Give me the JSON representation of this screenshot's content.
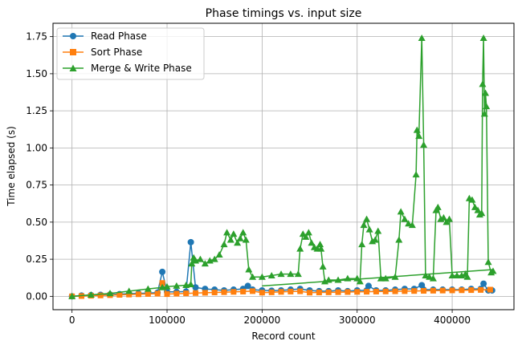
{
  "chart_data": {
    "type": "line",
    "title": "Phase timings vs. input size",
    "xlabel": "Record count",
    "ylabel": "Time elapsed (s)",
    "xlim": [
      -20000,
      465000
    ],
    "ylim": [
      -0.09,
      1.84
    ],
    "x_ticks": [
      0,
      100000,
      200000,
      300000,
      400000
    ],
    "x_tick_labels": [
      "0",
      "100000",
      "200000",
      "300000",
      "400000"
    ],
    "y_ticks": [
      0.0,
      0.25,
      0.5,
      0.75,
      1.0,
      1.25,
      1.5,
      1.75
    ],
    "y_tick_labels": [
      "0.00",
      "0.25",
      "0.50",
      "0.75",
      "1.00",
      "1.25",
      "1.50",
      "1.75"
    ],
    "grid": true,
    "legend_position": "top-left",
    "series": [
      {
        "name": "Read Phase",
        "color": "#1f77b4",
        "marker": "circle",
        "x": [
          0,
          10000,
          20000,
          30000,
          40000,
          50000,
          60000,
          70000,
          80000,
          90000,
          95000,
          100000,
          110000,
          120000,
          125000,
          130000,
          140000,
          150000,
          160000,
          170000,
          180000,
          185000,
          190000,
          200000,
          210000,
          220000,
          230000,
          240000,
          250000,
          260000,
          270000,
          280000,
          290000,
          300000,
          310000,
          312000,
          320000,
          330000,
          340000,
          350000,
          360000,
          368000,
          370000,
          380000,
          390000,
          400000,
          410000,
          420000,
          430000,
          433000,
          438000,
          442000
        ],
        "y": [
          0.0,
          0.005,
          0.008,
          0.01,
          0.012,
          0.015,
          0.018,
          0.02,
          0.022,
          0.025,
          0.165,
          0.03,
          0.03,
          0.032,
          0.365,
          0.06,
          0.05,
          0.045,
          0.04,
          0.045,
          0.05,
          0.07,
          0.045,
          0.04,
          0.038,
          0.04,
          0.045,
          0.05,
          0.04,
          0.035,
          0.035,
          0.04,
          0.035,
          0.04,
          0.04,
          0.07,
          0.04,
          0.04,
          0.045,
          0.05,
          0.05,
          0.075,
          0.045,
          0.045,
          0.045,
          0.045,
          0.045,
          0.05,
          0.05,
          0.085,
          0.04,
          0.04
        ]
      },
      {
        "name": "Sort Phase",
        "color": "#ff7f0e",
        "marker": "square",
        "x": [
          0,
          10000,
          20000,
          30000,
          40000,
          50000,
          60000,
          70000,
          80000,
          90000,
          95000,
          100000,
          110000,
          120000,
          130000,
          140000,
          150000,
          160000,
          170000,
          180000,
          190000,
          200000,
          210000,
          220000,
          230000,
          240000,
          250000,
          260000,
          270000,
          280000,
          290000,
          300000,
          310000,
          320000,
          330000,
          340000,
          350000,
          360000,
          370000,
          380000,
          390000,
          400000,
          410000,
          420000,
          430000,
          440000
        ],
        "y": [
          0.0,
          0.002,
          0.004,
          0.006,
          0.008,
          0.01,
          0.012,
          0.014,
          0.016,
          0.018,
          0.09,
          0.015,
          0.018,
          0.02,
          0.022,
          0.024,
          0.026,
          0.028,
          0.03,
          0.032,
          0.035,
          0.025,
          0.027,
          0.03,
          0.032,
          0.034,
          0.025,
          0.026,
          0.027,
          0.028,
          0.029,
          0.03,
          0.031,
          0.032,
          0.033,
          0.034,
          0.035,
          0.036,
          0.037,
          0.038,
          0.039,
          0.04,
          0.041,
          0.042,
          0.043,
          0.045
        ]
      },
      {
        "name": "Merge & Write Phase",
        "color": "#2ca02c",
        "marker": "triangle",
        "x": [
          0,
          20000,
          40000,
          60000,
          80000,
          95000,
          100000,
          110000,
          120000,
          125000,
          126000,
          128000,
          130000,
          135000,
          140000,
          145000,
          150000,
          155000,
          160000,
          163000,
          167000,
          170000,
          174000,
          177000,
          180000,
          183000,
          186000,
          190000,
          200000,
          210000,
          220000,
          230000,
          238000,
          240000,
          243000,
          246000,
          249000,
          252000,
          255000,
          258000,
          261000,
          262000,
          264000,
          266000,
          270000,
          280000,
          290000,
          300000,
          303000,
          305000,
          307000,
          310000,
          313000,
          316000,
          319000,
          322000,
          325000,
          330000,
          340000,
          344000,
          346000,
          350000,
          354000,
          358000,
          362000,
          363000,
          365000,
          368000,
          370000,
          372000,
          376000,
          380000,
          383000,
          385000,
          388000,
          391000,
          394000,
          397000,
          400000,
          405000,
          410000,
          414000,
          416000,
          418000,
          421000,
          424000,
          427000,
          429000,
          431000,
          432000,
          433000,
          434000,
          435000,
          436000,
          438000,
          441000,
          443000
        ],
        "y": [
          0.0,
          0.01,
          0.02,
          0.035,
          0.05,
          0.06,
          0.065,
          0.07,
          0.075,
          0.08,
          0.22,
          0.26,
          0.24,
          0.25,
          0.22,
          0.24,
          0.25,
          0.28,
          0.35,
          0.43,
          0.38,
          0.42,
          0.36,
          0.39,
          0.43,
          0.38,
          0.18,
          0.13,
          0.13,
          0.14,
          0.15,
          0.15,
          0.15,
          0.32,
          0.42,
          0.4,
          0.43,
          0.36,
          0.33,
          0.32,
          0.35,
          0.32,
          0.2,
          0.1,
          0.11,
          0.11,
          0.12,
          0.12,
          0.1,
          0.35,
          0.48,
          0.52,
          0.45,
          0.37,
          0.38,
          0.44,
          0.12,
          0.12,
          0.13,
          0.38,
          0.57,
          0.52,
          0.49,
          0.48,
          0.82,
          1.12,
          1.08,
          1.74,
          1.02,
          0.14,
          0.13,
          0.12,
          0.58,
          0.6,
          0.52,
          0.53,
          0.5,
          0.52,
          0.14,
          0.14,
          0.14,
          0.15,
          0.13,
          0.66,
          0.65,
          0.6,
          0.58,
          0.55,
          0.56,
          1.43,
          1.74,
          1.23,
          1.37,
          1.28,
          0.23,
          0.16,
          0.17
        ]
      }
    ],
    "trend_line": {
      "color": "#2ca02c",
      "x": [
        200000,
        443000
      ],
      "y": [
        0.07,
        0.18
      ]
    }
  }
}
